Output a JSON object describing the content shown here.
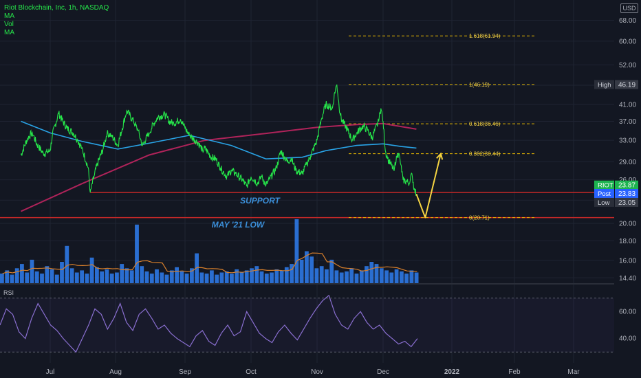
{
  "legend": {
    "title": "Riot Blockchain, Inc, 1h, NASDAQ",
    "items": [
      "MA",
      "Vol",
      "MA"
    ]
  },
  "currency_label": "USD",
  "rsi_label": "RSI",
  "colors": {
    "background": "#131722",
    "price": "#26e64a",
    "ma_fast": "#29a3e6",
    "ma_slow": "#b0235a",
    "support_line": "#c62828",
    "fib": "#e6b800",
    "projection": "#f5d442",
    "annotation": "#3b8fd9",
    "volume": "#2f7ef0",
    "volume_ma": "#d9802b",
    "rsi": "#8a6fd1"
  },
  "chart_data": {
    "type": "line",
    "symbol": "RIOT",
    "timeframe": "1h",
    "x_ticks": [
      "Jul",
      "Aug",
      "Sep",
      "Oct",
      "Nov",
      "Dec",
      "2022",
      "Feb",
      "Mar"
    ],
    "y_scale": "log",
    "y_ticks": [
      14.4,
      16.0,
      18.0,
      20.0,
      23.0,
      26.0,
      29.0,
      33.0,
      37.0,
      41.0,
      46.0,
      52.0,
      60.0,
      68.0
    ],
    "y_tick_labels": [
      "14.40",
      "16.00",
      "18.00",
      "20.00",
      "23.00",
      "26.00",
      "29.00",
      "33.00",
      "37.00",
      "41.00",
      "46.00",
      "52.00",
      "60.00",
      "68.00"
    ],
    "price_series": {
      "name": "RIOT",
      "points": [
        [
          "Jun 18",
          30.2
        ],
        [
          "Jun 21",
          33.5
        ],
        [
          "Jun 23",
          34.6
        ],
        [
          "Jun 25",
          32.3
        ],
        [
          "Jun 28",
          30.4
        ],
        [
          "Jul 1",
          31.0
        ],
        [
          "Jul 2",
          34.0
        ],
        [
          "Jul 5",
          38.8
        ],
        [
          "Jul 7",
          37.0
        ],
        [
          "Jul 9",
          35.5
        ],
        [
          "Jul 12",
          34.5
        ],
        [
          "Jul 14",
          33.0
        ],
        [
          "Jul 16",
          31.5
        ],
        [
          "Jul 19",
          28.0
        ],
        [
          "Jul 20",
          24.1
        ],
        [
          "Jul 22",
          26.8
        ],
        [
          "Jul 23",
          28.2
        ],
        [
          "Jul 26",
          31.2
        ],
        [
          "Jul 28",
          34.4
        ],
        [
          "Jul 30",
          34.0
        ],
        [
          "Aug 2",
          32.0
        ],
        [
          "Aug 4",
          35.5
        ],
        [
          "Aug 6",
          39.5
        ],
        [
          "Aug 9",
          37.0
        ],
        [
          "Aug 11",
          35.0
        ],
        [
          "Aug 13",
          32.0
        ],
        [
          "Aug 16",
          34.5
        ],
        [
          "Aug 18",
          36.5
        ],
        [
          "Aug 20",
          38.0
        ],
        [
          "Aug 23",
          38.5
        ],
        [
          "Aug 25",
          37.0
        ],
        [
          "Aug 27",
          36.5
        ],
        [
          "Aug 30",
          37.5
        ],
        [
          "Sep 1",
          35.5
        ],
        [
          "Sep 3",
          34.0
        ],
        [
          "Sep 7",
          32.5
        ],
        [
          "Sep 9",
          31.0
        ],
        [
          "Sep 10",
          31.5
        ],
        [
          "Sep 13",
          29.8
        ],
        [
          "Sep 15",
          29.5
        ],
        [
          "Sep 17",
          28.0
        ],
        [
          "Sep 20",
          26.5
        ],
        [
          "Sep 22",
          27.5
        ],
        [
          "Sep 24",
          27.0
        ],
        [
          "Sep 27",
          26.0
        ],
        [
          "Sep 29",
          25.0
        ],
        [
          "Oct 1",
          26.5
        ],
        [
          "Oct 4",
          25.5
        ],
        [
          "Oct 6",
          26.5
        ],
        [
          "Oct 8",
          25.2
        ],
        [
          "Oct 11",
          26.8
        ],
        [
          "Oct 13",
          28.0
        ],
        [
          "Oct 15",
          31.0
        ],
        [
          "Oct 18",
          29.0
        ],
        [
          "Oct 20",
          29.5
        ],
        [
          "Oct 22",
          27.5
        ],
        [
          "Oct 25",
          27.0
        ],
        [
          "Oct 27",
          28.5
        ],
        [
          "Oct 29",
          30.0
        ],
        [
          "Nov 1",
          33.0
        ],
        [
          "Nov 3",
          37.5
        ],
        [
          "Nov 5",
          41.0
        ],
        [
          "Nov 8",
          40.0
        ],
        [
          "Nov 9",
          44.0
        ],
        [
          "Nov 10",
          46.19
        ],
        [
          "Nov 11",
          40.5
        ],
        [
          "Nov 12",
          37.5
        ],
        [
          "Nov 15",
          35.0
        ],
        [
          "Nov 17",
          33.0
        ],
        [
          "Nov 19",
          34.5
        ],
        [
          "Nov 22",
          36.0
        ],
        [
          "Nov 24",
          35.0
        ],
        [
          "Nov 26",
          33.5
        ],
        [
          "Nov 29",
          37.0
        ],
        [
          "Nov 30",
          40.0
        ],
        [
          "Dec 1",
          37.0
        ],
        [
          "Dec 2",
          31.0
        ],
        [
          "Dec 3",
          29.5
        ],
        [
          "Dec 6",
          27.5
        ],
        [
          "Dec 7",
          30.0
        ],
        [
          "Dec 8",
          30.5
        ],
        [
          "Dec 9",
          28.5
        ],
        [
          "Dec 10",
          26.0
        ],
        [
          "Dec 13",
          25.5
        ],
        [
          "Dec 14",
          27.0
        ],
        [
          "Dec 15",
          24.5
        ],
        [
          "Dec 16",
          23.87
        ]
      ]
    },
    "ma_fast": {
      "points": [
        [
          "Jun 18",
          37.0
        ],
        [
          "Jul 1",
          34.5
        ],
        [
          "Jul 16",
          32.8
        ],
        [
          "Aug 2",
          31.3
        ],
        [
          "Aug 18",
          32.6
        ],
        [
          "Sep 3",
          34.0
        ],
        [
          "Sep 22",
          32.0
        ],
        [
          "Oct 8",
          29.5
        ],
        [
          "Oct 25",
          29.8
        ],
        [
          "Nov 5",
          31.0
        ],
        [
          "Nov 19",
          32.0
        ],
        [
          "Dec 1",
          32.3
        ],
        [
          "Dec 9",
          31.8
        ],
        [
          "Dec 16",
          31.5
        ]
      ]
    },
    "ma_slow": {
      "points": [
        [
          "Jun 18",
          21.5
        ],
        [
          "Jul 16",
          25.4
        ],
        [
          "Aug 16",
          30.2
        ],
        [
          "Sep 10",
          33.0
        ],
        [
          "Oct 8",
          34.4
        ],
        [
          "Nov 1",
          35.7
        ],
        [
          "Nov 19",
          36.3
        ],
        [
          "Dec 1",
          36.5
        ],
        [
          "Dec 16",
          35.3
        ]
      ]
    },
    "support_level": {
      "label": "SUPPORT",
      "price": 24.1,
      "from": "Jul 20"
    },
    "may_low_level": {
      "label": "MAY '21 LOW",
      "price": 20.71
    },
    "fibonacci": [
      {
        "level": "1.618",
        "price": 61.94,
        "label": "1.618(61.94)"
      },
      {
        "level": "1",
        "price": 46.19,
        "label": "1(46.19)"
      },
      {
        "level": "0.618",
        "price": 36.46,
        "label": "0.618(36.46)"
      },
      {
        "level": "0.382",
        "price": 30.44,
        "label": "0.382(30.44)"
      },
      {
        "level": "0",
        "price": 20.71,
        "label": "0(20.71)"
      }
    ],
    "projection": [
      [
        "Dec 16",
        23.87
      ],
      [
        "Dec 20",
        20.71
      ],
      [
        "Dec 27",
        30.44
      ]
    ],
    "badges": [
      {
        "label": "High",
        "value": "46.19",
        "price": 46.19,
        "style": "dark"
      },
      {
        "label": "RIOT",
        "value": "23.87",
        "price": 25.2,
        "style": "green"
      },
      {
        "label": "Post",
        "value": "23.83",
        "price": 23.95,
        "style": "blue"
      },
      {
        "label": "Low",
        "value": "23.05",
        "price": 22.7,
        "style": "dark"
      }
    ],
    "volume_series": {
      "name": "Vol",
      "values": [
        9,
        12,
        8,
        14,
        18,
        10,
        22,
        11,
        9,
        16,
        13,
        8,
        20,
        35,
        14,
        10,
        12,
        9,
        24,
        15,
        11,
        13,
        9,
        10,
        18,
        14,
        12,
        55,
        16,
        11,
        9,
        13,
        10,
        8,
        12,
        15,
        11,
        9,
        14,
        28,
        10,
        9,
        12,
        8,
        10,
        11,
        9,
        13,
        10,
        12,
        14,
        16,
        11,
        9,
        10,
        13,
        12,
        15,
        18,
        60,
        22,
        30,
        25,
        14,
        16,
        13,
        22,
        12,
        10,
        11,
        14,
        9,
        12,
        16,
        20,
        18,
        14,
        12,
        10,
        13,
        11,
        9,
        12,
        10
      ]
    },
    "rsi": {
      "name": "RSI",
      "y_ticks": [
        40.0,
        60.0
      ],
      "y_tick_labels": [
        "40.00",
        "60.00"
      ],
      "upper": 70,
      "lower": 30,
      "values": [
        50,
        62,
        58,
        45,
        40,
        55,
        66,
        58,
        50,
        46,
        40,
        35,
        30,
        40,
        50,
        62,
        58,
        47,
        55,
        66,
        52,
        46,
        58,
        62,
        55,
        47,
        50,
        44,
        40,
        37,
        34,
        42,
        46,
        38,
        35,
        44,
        50,
        42,
        45,
        60,
        52,
        44,
        40,
        37,
        45,
        50,
        44,
        39,
        47,
        55,
        62,
        68,
        72,
        58,
        50,
        47,
        55,
        60,
        52,
        47,
        50,
        44,
        40,
        36,
        38,
        34,
        40
      ]
    }
  }
}
